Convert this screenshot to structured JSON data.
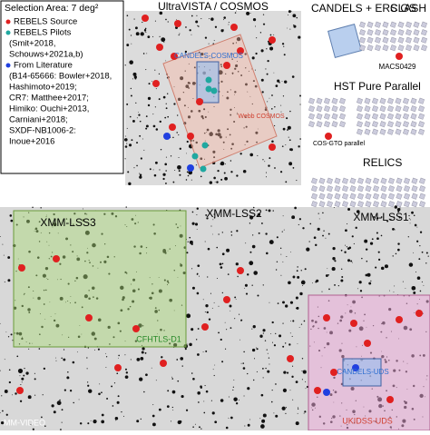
{
  "legend": {
    "title": "Selection Area: 7 deg²",
    "items": [
      {
        "label": "REBELS Source",
        "lines": []
      },
      {
        "label": "REBELS Pilots",
        "lines": [
          "(Smit+2018,",
          "Schouws+2021a,b)"
        ]
      },
      {
        "label": "From Literature",
        "lines": [
          "(B14-65666: Bowler+2018,",
          "Hashimoto+2019;",
          "CR7: Matthee+2017;",
          "Himiko: Ouchi+2013,",
          "Carniani+2018;",
          "SXDF-NB1006-2:",
          "Inoue+2016"
        ]
      }
    ]
  },
  "fields": {
    "cosmos": {
      "title": "UltraVISTA / COSMOS",
      "candels": "CANDELS-COSMOS",
      "webb": "Webb COSMOS"
    },
    "goods": {
      "title": "CANDELS + ERS GS"
    },
    "clash": {
      "title": "CLASH",
      "cluster": "MACS0429"
    },
    "hst": {
      "title": "HST Pure Parallel",
      "cos": "COS-GTO parallel"
    },
    "relics": {
      "title": "RELICS"
    },
    "xmm3": {
      "title": "XMM-LSS3",
      "sub": "CFHTLS-D1"
    },
    "xmm2": {
      "title": "XMM-LSS2"
    },
    "xmm1": {
      "title": "XMM-LSS1",
      "candels": "CANDELS-UDS",
      "ukidss": "UKIDSS-UDS"
    },
    "video": {
      "title": "MM-VIDEO"
    }
  }
}
